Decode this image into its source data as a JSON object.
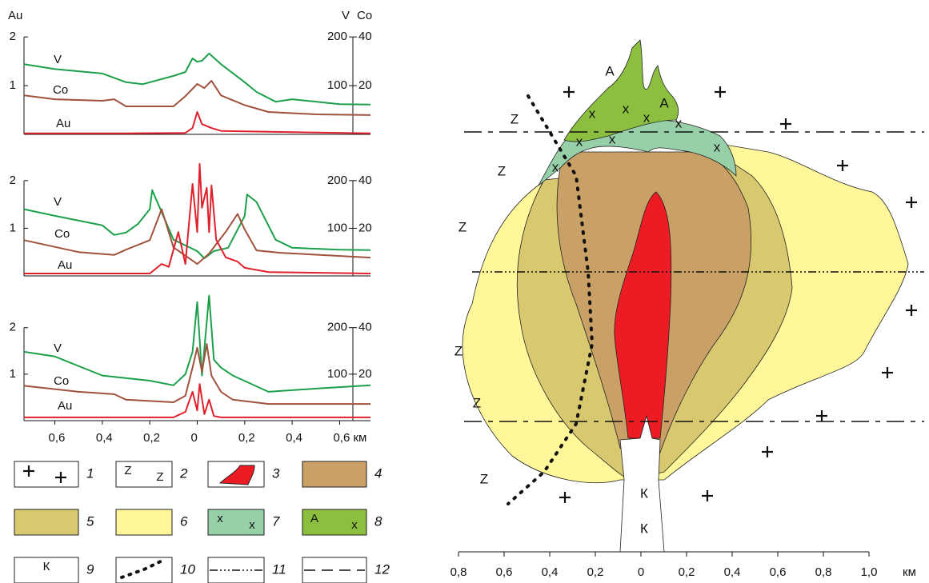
{
  "chart_data": [
    {
      "type": "line",
      "y_label": "Au",
      "y2_label": "V",
      "y3_label": "Co",
      "xlim": [
        -0.73,
        0.73
      ],
      "ylim": [
        0,
        2.2
      ],
      "y2lim": [
        0,
        220
      ],
      "y3lim": [
        0,
        44
      ],
      "yticks": [
        1,
        2
      ],
      "y2ticks": [
        100,
        200
      ],
      "y3ticks": [
        20,
        40
      ],
      "series": [
        {
          "name": "V",
          "color": "#1ca04a",
          "axis": "y2",
          "x": [
            -0.73,
            -0.6,
            -0.4,
            -0.3,
            -0.23,
            -0.1,
            -0.05,
            -0.02,
            0,
            0.02,
            0.05,
            0.1,
            0.2,
            0.25,
            0.33,
            0.4,
            0.6,
            0.73
          ],
          "values": [
            144,
            134,
            125,
            107,
            103,
            120,
            128,
            156,
            149,
            151,
            166,
            144,
            107,
            87,
            67,
            72,
            62,
            61
          ]
        },
        {
          "name": "Co",
          "color": "#a0523c",
          "axis": "y3",
          "x": [
            -0.73,
            -0.6,
            -0.4,
            -0.35,
            -0.3,
            -0.1,
            -0.05,
            0,
            0.03,
            0.06,
            0.1,
            0.2,
            0.3,
            0.5,
            0.73
          ],
          "values": [
            16,
            14.4,
            13.8,
            14.4,
            11.5,
            11.5,
            15.7,
            20.7,
            19,
            22,
            16,
            12,
            9.2,
            8.2,
            7.9
          ]
        },
        {
          "name": "Au",
          "color": "#e0202a",
          "axis": "y",
          "x": [
            -0.73,
            -0.3,
            -0.05,
            -0.02,
            0,
            0.02,
            0.06,
            0.1,
            0.73
          ],
          "values": [
            0.02,
            0.02,
            0.03,
            0.13,
            0.46,
            0.21,
            0.13,
            0.07,
            0.02
          ]
        }
      ]
    },
    {
      "type": "line",
      "xlim": [
        -0.73,
        0.73
      ],
      "ylim": [
        0,
        2.4
      ],
      "y2lim": [
        0,
        240
      ],
      "y3lim": [
        0,
        48
      ],
      "yticks": [
        1,
        2
      ],
      "y2ticks": [
        100,
        200
      ],
      "y3ticks": [
        20,
        40
      ],
      "series": [
        {
          "name": "V",
          "color": "#1ca04a",
          "axis": "y2",
          "x": [
            -0.73,
            -0.6,
            -0.4,
            -0.35,
            -0.3,
            -0.25,
            -0.2,
            -0.19,
            -0.15,
            -0.1,
            0,
            0.03,
            0.07,
            0.13,
            0.2,
            0.21,
            0.25,
            0.33,
            0.4,
            0.6,
            0.73
          ],
          "values": [
            140,
            126,
            106,
            86,
            91,
            109,
            140,
            180,
            134,
            76,
            52,
            37,
            52,
            59,
            126,
            171,
            155,
            76,
            59,
            55,
            54
          ]
        },
        {
          "name": "Co",
          "color": "#a0523c",
          "axis": "y3",
          "x": [
            -0.73,
            -0.5,
            -0.35,
            -0.3,
            -0.2,
            -0.15,
            -0.1,
            -0.05,
            0,
            0.05,
            0.12,
            0.17,
            0.2,
            0.25,
            0.35,
            0.73
          ],
          "values": [
            15,
            10,
            8.8,
            11,
            15,
            28,
            12,
            8.5,
            5,
            9.4,
            18.5,
            26,
            19.5,
            10.7,
            9.7,
            7.7
          ]
        },
        {
          "name": "Au",
          "color": "#e0202a",
          "axis": "y",
          "x": [
            -0.73,
            -0.2,
            -0.15,
            -0.12,
            -0.08,
            -0.05,
            -0.02,
            0,
            0.01,
            0.02,
            0.04,
            0.05,
            0.06,
            0.08,
            0.12,
            0.17,
            0.2,
            0.3,
            0.73
          ],
          "values": [
            0.05,
            0.05,
            0.25,
            0.19,
            0.92,
            0.25,
            1.93,
            0.92,
            2.35,
            1.43,
            1.85,
            0.92,
            1.9,
            0.76,
            0.39,
            0.3,
            0.17,
            0.08,
            0.05
          ]
        }
      ]
    },
    {
      "type": "line",
      "xlim": [
        -0.73,
        0.73
      ],
      "ylim": [
        0,
        2.7
      ],
      "y2lim": [
        0,
        270
      ],
      "y3lim": [
        0,
        54
      ],
      "yticks": [
        1,
        2
      ],
      "y2ticks": [
        100,
        200
      ],
      "y3ticks": [
        20,
        40
      ],
      "xticks": [
        {
          "value": -0.6,
          "label": "0,6"
        },
        {
          "value": -0.4,
          "label": "0,4"
        },
        {
          "value": -0.2,
          "label": "0,2"
        },
        0,
        {
          "value": 0.2,
          "label": "0,2"
        },
        {
          "value": 0.4,
          "label": "0,4"
        },
        {
          "value": 0.6,
          "label": "0,6 км"
        }
      ],
      "series": [
        {
          "name": "V",
          "color": "#1ca04a",
          "axis": "y2",
          "x": [
            -0.73,
            -0.6,
            -0.4,
            -0.2,
            -0.1,
            -0.05,
            -0.02,
            0,
            0.02,
            0.05,
            0.07,
            0.1,
            0.15,
            0.3,
            0.5,
            0.73
          ],
          "values": [
            148,
            138,
            97,
            86,
            76,
            100,
            148,
            255,
            97,
            269,
            131,
            114,
            97,
            62,
            69,
            76
          ]
        },
        {
          "name": "Co",
          "color": "#a0523c",
          "axis": "y3",
          "x": [
            -0.73,
            -0.5,
            -0.35,
            -0.3,
            -0.1,
            -0.05,
            -0.02,
            0,
            0.02,
            0.04,
            0.06,
            0.1,
            0.15,
            0.3,
            0.73
          ],
          "values": [
            15,
            12.4,
            11.4,
            9,
            7.9,
            10.7,
            22.8,
            31.4,
            21,
            33,
            19.3,
            12.4,
            9,
            7.2,
            7.2
          ]
        },
        {
          "name": "Au",
          "color": "#e0202a",
          "axis": "y",
          "x": [
            -0.73,
            -0.1,
            -0.05,
            -0.02,
            0,
            0.01,
            0.03,
            0.05,
            0.07,
            0.1,
            0.73
          ],
          "values": [
            0.07,
            0.07,
            0.19,
            0.62,
            0.22,
            0.79,
            0.14,
            0.45,
            0.1,
            0.07,
            0.07
          ]
        }
      ]
    }
  ],
  "map": {
    "labels": [
      "Z",
      "Z",
      "Z",
      "Z",
      "Z",
      "Z",
      "A",
      "A",
      "x",
      "x",
      "x",
      "x",
      "x",
      "x",
      "x",
      "x",
      "К",
      "К"
    ],
    "scale_ticks": [
      {
        "value": -0.8,
        "label": "0,8"
      },
      {
        "value": -0.6,
        "label": "0,6"
      },
      {
        "value": -0.4,
        "label": "0,4"
      },
      {
        "value": -0.2,
        "label": "0,2"
      },
      0,
      {
        "value": 0.2,
        "label": "0,2"
      },
      {
        "value": 0.4,
        "label": "0,4"
      },
      {
        "value": 0.6,
        "label": "0,6"
      },
      {
        "value": 0.8,
        "label": "0,8"
      },
      {
        "value": 1.0,
        "label": "1,0"
      }
    ],
    "scale_unit": "км"
  },
  "legend": {
    "items": [
      {
        "number": "1"
      },
      {
        "number": "2",
        "sample": [
          "Z",
          "Z"
        ]
      },
      {
        "number": "3"
      },
      {
        "number": "4"
      },
      {
        "number": "5"
      },
      {
        "number": "6"
      },
      {
        "number": "7",
        "sample": [
          "x",
          "x"
        ]
      },
      {
        "number": "8",
        "sample": [
          "A",
          "x"
        ]
      },
      {
        "number": "9",
        "sample": [
          "К"
        ]
      },
      {
        "number": "10"
      },
      {
        "number": "11"
      },
      {
        "number": "12"
      }
    ]
  }
}
